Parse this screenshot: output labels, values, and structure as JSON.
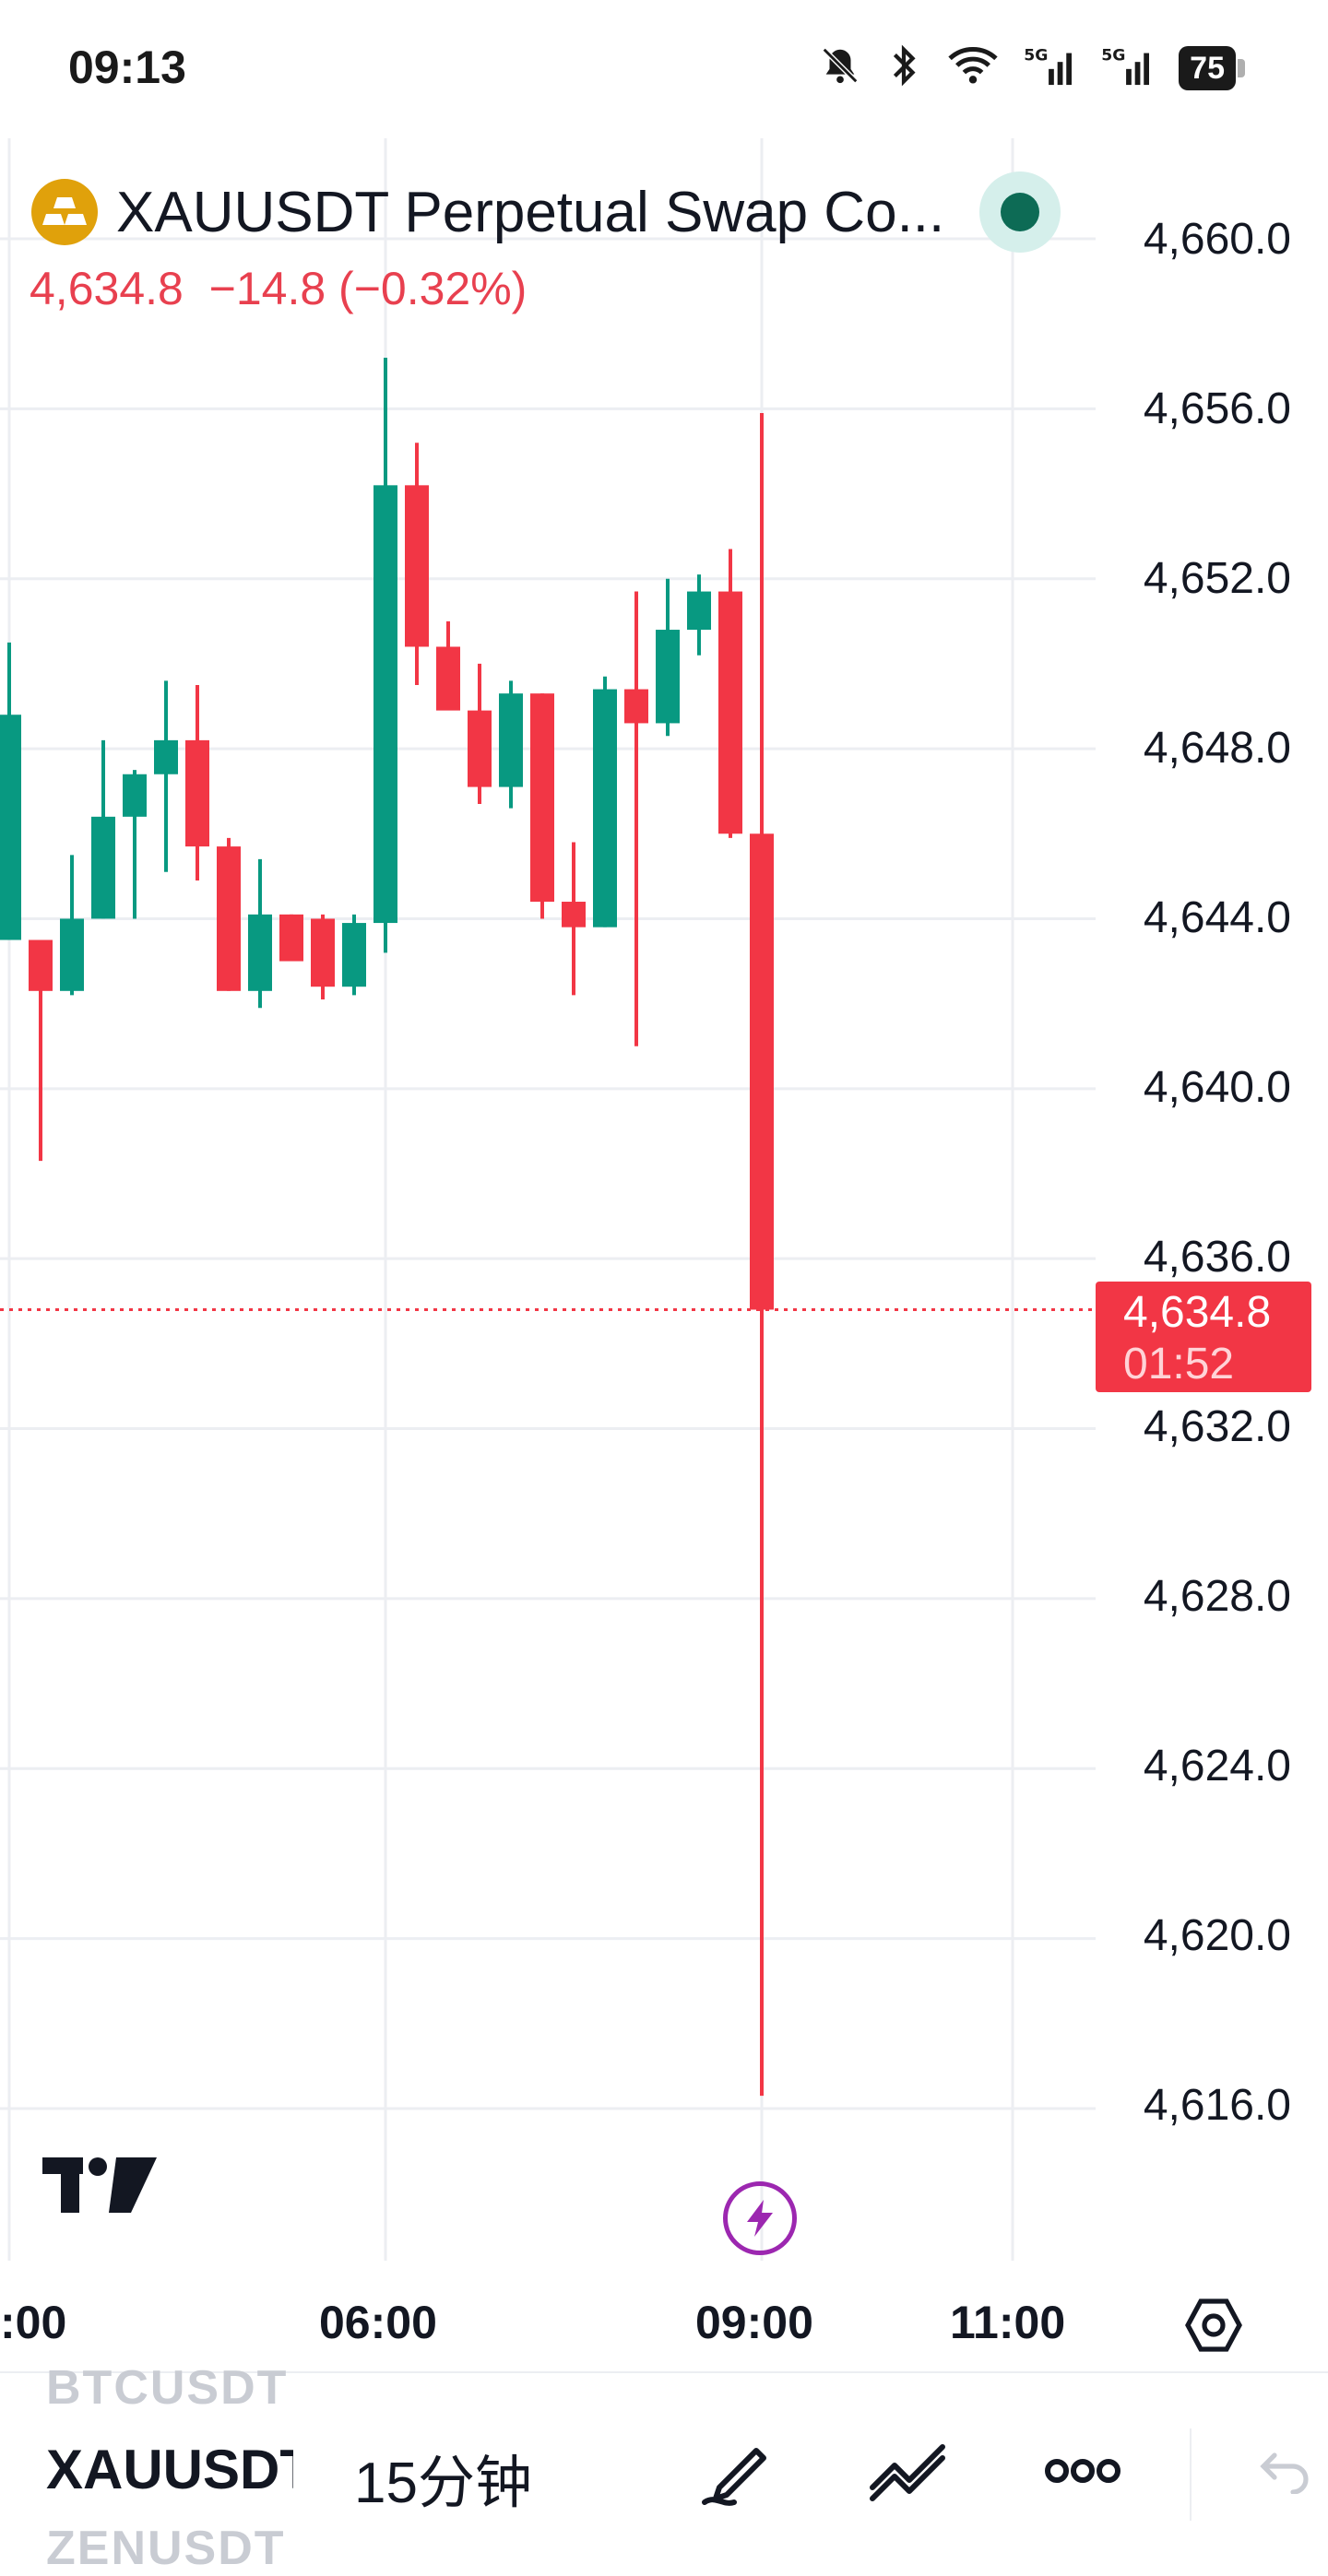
{
  "status_bar": {
    "time": "09:13",
    "battery": "75",
    "icons": [
      "mute-bell-icon",
      "bluetooth-icon",
      "wifi-icon",
      "signal-5g-icon",
      "signal-5g-icon",
      "battery-icon"
    ]
  },
  "chart_header": {
    "symbol_title": "XAUUSDT Perpetual Swap Co...",
    "last_price": "4,634.8",
    "change": "−14.8",
    "change_pct": "(−0.32%)",
    "live_indicator": "live-dot"
  },
  "price_axis": {
    "labels": [
      "4,660.0",
      "4,656.0",
      "4,652.0",
      "4,648.0",
      "4,644.0",
      "4,640.0",
      "4,636.0",
      "4,632.0",
      "4,628.0",
      "4,624.0",
      "4,620.0",
      "4,616.0"
    ]
  },
  "current_price_tag": {
    "price": "4,634.8",
    "countdown": "01:52"
  },
  "time_axis": {
    "labels": [
      ":00",
      "06:00",
      "09:00",
      "11:00"
    ]
  },
  "colors": {
    "up": "#089981",
    "down": "#f23645",
    "grid": "#eceef2",
    "flash": "#9c27b0"
  },
  "chart_data": {
    "type": "candlestick",
    "title": "XAUUSDT Perpetual Swap Co...",
    "y_ticks": [
      4660,
      4656,
      4652,
      4648,
      4644,
      4640,
      4636,
      4632,
      4628,
      4624,
      4620,
      4616
    ],
    "x_ticks": [
      ":00",
      "06:00",
      "09:00",
      "11:00"
    ],
    "last_price": 4634.8,
    "candles": [
      {
        "o": 4643.5,
        "h": 4650.5,
        "l": 4643.5,
        "c": 4648.8
      },
      {
        "o": 4643.5,
        "h": 4643.5,
        "l": 4638.3,
        "c": 4642.3
      },
      {
        "o": 4642.3,
        "h": 4645.5,
        "l": 4642.2,
        "c": 4644.0
      },
      {
        "o": 4644.0,
        "h": 4648.2,
        "l": 4644.0,
        "c": 4646.4
      },
      {
        "o": 4646.4,
        "h": 4647.5,
        "l": 4644.0,
        "c": 4647.4
      },
      {
        "o": 4647.4,
        "h": 4649.6,
        "l": 4645.1,
        "c": 4648.2
      },
      {
        "o": 4648.2,
        "h": 4649.5,
        "l": 4644.9,
        "c": 4645.7
      },
      {
        "o": 4645.7,
        "h": 4645.9,
        "l": 4642.3,
        "c": 4642.3
      },
      {
        "o": 4642.3,
        "h": 4645.4,
        "l": 4641.9,
        "c": 4644.1
      },
      {
        "o": 4644.1,
        "h": 4644.1,
        "l": 4643.3,
        "c": 4643.0
      },
      {
        "o": 4644.0,
        "h": 4644.1,
        "l": 4642.1,
        "c": 4642.4
      },
      {
        "o": 4642.4,
        "h": 4644.1,
        "l": 4642.2,
        "c": 4643.9
      },
      {
        "o": 4643.9,
        "h": 4657.2,
        "l": 4643.2,
        "c": 4654.2
      },
      {
        "o": 4654.2,
        "h": 4655.2,
        "l": 4649.5,
        "c": 4650.4
      },
      {
        "o": 4650.4,
        "h": 4651.0,
        "l": 4649.3,
        "c": 4648.9
      },
      {
        "o": 4648.9,
        "h": 4650.0,
        "l": 4646.7,
        "c": 4647.1
      },
      {
        "o": 4647.1,
        "h": 4649.6,
        "l": 4646.6,
        "c": 4649.3
      },
      {
        "o": 4649.3,
        "h": 4649.3,
        "l": 4644.0,
        "c": 4644.4
      },
      {
        "o": 4644.4,
        "h": 4645.8,
        "l": 4642.2,
        "c": 4643.8
      },
      {
        "o": 4643.8,
        "h": 4649.7,
        "l": 4643.8,
        "c": 4649.4
      },
      {
        "o": 4649.4,
        "h": 4651.7,
        "l": 4641.0,
        "c": 4648.6
      },
      {
        "o": 4648.6,
        "h": 4652.0,
        "l": 4648.3,
        "c": 4650.8
      },
      {
        "o": 4650.8,
        "h": 4652.1,
        "l": 4650.2,
        "c": 4651.7
      },
      {
        "o": 4651.7,
        "h": 4652.7,
        "l": 4645.9,
        "c": 4646.0
      },
      {
        "o": 4646.0,
        "h": 4655.9,
        "l": 4616.3,
        "c": 4634.8
      }
    ]
  },
  "toolbar": {
    "ghost_symbol_above": "BTCUSDT",
    "symbol": "XAUUSDT",
    "ghost_symbol_below": "ZENUSDT",
    "interval": "15分钟",
    "tools": [
      "pen-icon",
      "drawing-tools-icon",
      "more-icon",
      "undo-icon"
    ]
  }
}
